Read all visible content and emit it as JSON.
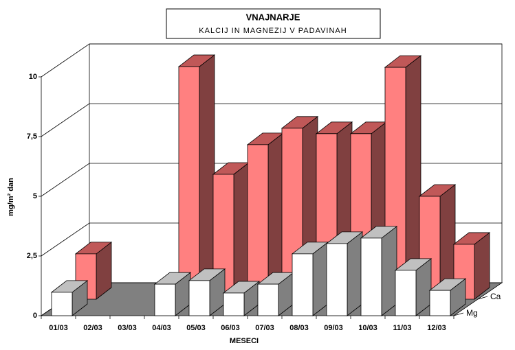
{
  "chart_data": {
    "type": "bar3d",
    "title": "VNAJNARJE",
    "subtitle": "KALCIJ IN MAGNEZIJ V PADAVINAH",
    "x_label": "MESECI",
    "y_label": "mg/m² dan",
    "categories": [
      "01/03",
      "02/03",
      "03/03",
      "04/03",
      "05/03",
      "06/03",
      "07/03",
      "08/03",
      "09/03",
      "10/03",
      "11/03",
      "12/03"
    ],
    "series": [
      {
        "name": "Ca",
        "color": "#ff8080",
        "values": [
          1.9,
          null,
          null,
          9.74,
          5.23,
          6.47,
          7.16,
          6.93,
          6.93,
          9.71,
          4.31,
          2.3
        ]
      },
      {
        "name": "Mg",
        "color": "#ffffff",
        "values": [
          0.98,
          null,
          null,
          1.32,
          1.47,
          0.95,
          1.32,
          2.59,
          3.02,
          3.25,
          1.9,
          1.06
        ]
      }
    ],
    "ylim": [
      0,
      10
    ],
    "yticks": [
      0,
      {
        "value": 2.5,
        "label": "2,5"
      },
      5,
      {
        "value": 7.5,
        "label": "7,5"
      },
      10
    ],
    "grid": true
  }
}
